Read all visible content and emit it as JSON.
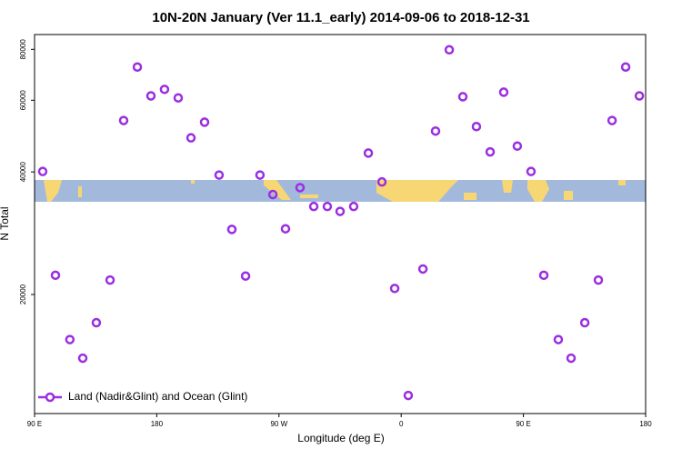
{
  "chart_data": {
    "type": "scatter",
    "title": "10N-20N January (Ver 11.1_early)   2014-09-06 to 2018-12-31",
    "x_label": "Longitude (deg E)",
    "y_label": "N Total",
    "log_y": true,
    "legend": "bottom left",
    "xlim": [
      90,
      540
    ],
    "xticks": [
      {
        "value": 90,
        "label": "90 E"
      },
      180,
      {
        "value": 270,
        "label": "90 W"
      },
      {
        "value": 360,
        "label": "0"
      },
      {
        "value": 450,
        "label": "90 E"
      },
      {
        "value": 540,
        "label": "180"
      }
    ],
    "ylim": [
      10200,
      87000
    ],
    "yticks": [
      20000,
      40000,
      60000,
      80000
    ],
    "series": [
      {
        "name": "Land (Nadir&Glint) and Ocean (Glint)",
        "color": "#9b2ee0",
        "x": [
          96,
          105.4,
          116,
          125.5,
          135.5,
          145.6,
          155.6,
          165.7,
          175.7,
          185.7,
          195.8,
          205.2,
          215.2,
          225.9,
          235.3,
          245.4,
          256,
          265.5,
          274.8,
          285.5,
          295.6,
          305.6,
          315,
          325,
          335.8,
          345.8,
          355.2,
          365.2,
          376,
          385.3,
          395.4,
          405.4,
          415.4,
          425.5,
          435.5,
          445.5,
          455.6,
          465,
          475.7,
          485.1,
          495.2,
          505.2,
          515.3,
          525.3,
          535.4
        ],
        "values": [
          40100,
          22300,
          15500,
          13950,
          17050,
          21700,
          53500,
          72400,
          61500,
          63800,
          60800,
          48500,
          53000,
          39300,
          28900,
          22200,
          39300,
          35200,
          29000,
          36600,
          32900,
          32900,
          32000,
          32900,
          44500,
          37800,
          20700,
          11300,
          23100,
          50400,
          79800,
          61200,
          51700,
          44800,
          62800,
          46300,
          40100,
          22300,
          15500,
          13950,
          17050,
          21700,
          53500,
          72400,
          61500
        ]
      }
    ]
  }
}
